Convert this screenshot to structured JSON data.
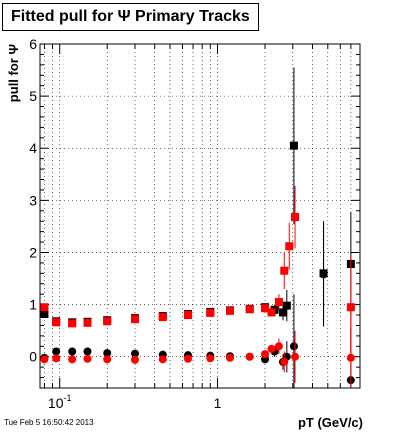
{
  "title": "Fitted pull for  Ψ   Primary Tracks",
  "footer": "Tue Feb  5 16:50:42 2013",
  "chart_data": {
    "type": "scatter",
    "title": "Fitted pull for  Ψ   Primary Tracks",
    "xlabel": "pT (GeV/c)",
    "ylabel": "pull for Ψ",
    "x_scale": "log",
    "xlim": [
      0.075,
      8
    ],
    "ylim": [
      -0.6,
      6
    ],
    "y_ticks": [
      "0",
      "1",
      "2",
      "3",
      "4",
      "5",
      "6"
    ],
    "x_ticks": [
      {
        "value": 0.1,
        "base": "10",
        "exp": "-1"
      },
      {
        "value": 1,
        "base": "1",
        "exp": ""
      }
    ],
    "grid": true,
    "series": [
      {
        "color": "#000000",
        "marker": "square",
        "x": [
          0.08,
          0.095,
          0.12,
          0.15,
          0.2,
          0.3,
          0.45,
          0.65,
          0.9,
          1.2,
          1.6,
          2.0,
          2.3,
          2.6,
          2.75,
          3.05,
          4.7,
          7.0
        ],
        "y": [
          0.82,
          0.68,
          0.66,
          0.67,
          0.7,
          0.74,
          0.78,
          0.82,
          0.86,
          0.89,
          0.92,
          0.95,
          0.9,
          0.85,
          0.98,
          4.05,
          1.6,
          1.78
        ],
        "err": [
          0.05,
          0.04,
          0.03,
          0.03,
          0.02,
          0.02,
          0.02,
          0.02,
          0.03,
          0.03,
          0.04,
          0.06,
          0.1,
          0.15,
          0.3,
          1.5,
          1.0,
          1.0
        ]
      },
      {
        "color": "#000000",
        "marker": "circle",
        "x": [
          0.08,
          0.095,
          0.12,
          0.15,
          0.2,
          0.3,
          0.45,
          0.65,
          0.9,
          1.2,
          1.6,
          2.0,
          2.3,
          2.6,
          2.75,
          3.05,
          4.7,
          7.0
        ],
        "y": [
          -0.02,
          0.1,
          0.1,
          0.1,
          0.07,
          0.06,
          0.04,
          0.03,
          0.02,
          0.01,
          0.0,
          -0.05,
          0.1,
          -0.1,
          0.0,
          0.2,
          1.58,
          -0.45
        ],
        "err": [
          0.05,
          0.04,
          0.03,
          0.03,
          0.02,
          0.02,
          0.02,
          0.02,
          0.03,
          0.03,
          0.04,
          0.06,
          0.1,
          0.15,
          0.3,
          1.0,
          1.0,
          1.0
        ]
      },
      {
        "color": "#ff0000",
        "marker": "square",
        "x": [
          0.08,
          0.095,
          0.12,
          0.15,
          0.2,
          0.3,
          0.45,
          0.65,
          0.9,
          1.2,
          1.6,
          2.0,
          2.2,
          2.45,
          2.65,
          2.85,
          3.1,
          7.0
        ],
        "y": [
          0.95,
          0.66,
          0.64,
          0.65,
          0.68,
          0.72,
          0.76,
          0.8,
          0.84,
          0.88,
          0.91,
          0.93,
          0.85,
          1.05,
          1.65,
          2.12,
          2.68,
          0.95
        ],
        "err": [
          0.05,
          0.04,
          0.03,
          0.03,
          0.02,
          0.02,
          0.02,
          0.02,
          0.03,
          0.03,
          0.04,
          0.05,
          0.08,
          0.15,
          0.35,
          0.45,
          0.6,
          1.0
        ]
      },
      {
        "color": "#ff0000",
        "marker": "circle",
        "x": [
          0.08,
          0.095,
          0.12,
          0.15,
          0.2,
          0.3,
          0.45,
          0.65,
          0.9,
          1.2,
          1.6,
          2.0,
          2.2,
          2.45,
          2.65,
          3.1,
          7.0
        ],
        "y": [
          -0.05,
          -0.03,
          -0.05,
          -0.04,
          -0.05,
          -0.06,
          -0.05,
          -0.04,
          -0.03,
          -0.02,
          0.0,
          0.05,
          0.15,
          0.2,
          -0.1,
          0.0,
          -0.02
        ],
        "err": [
          0.05,
          0.04,
          0.03,
          0.03,
          0.02,
          0.02,
          0.02,
          0.02,
          0.03,
          0.03,
          0.04,
          0.05,
          0.08,
          0.15,
          0.2,
          0.5,
          1.0
        ]
      }
    ]
  }
}
